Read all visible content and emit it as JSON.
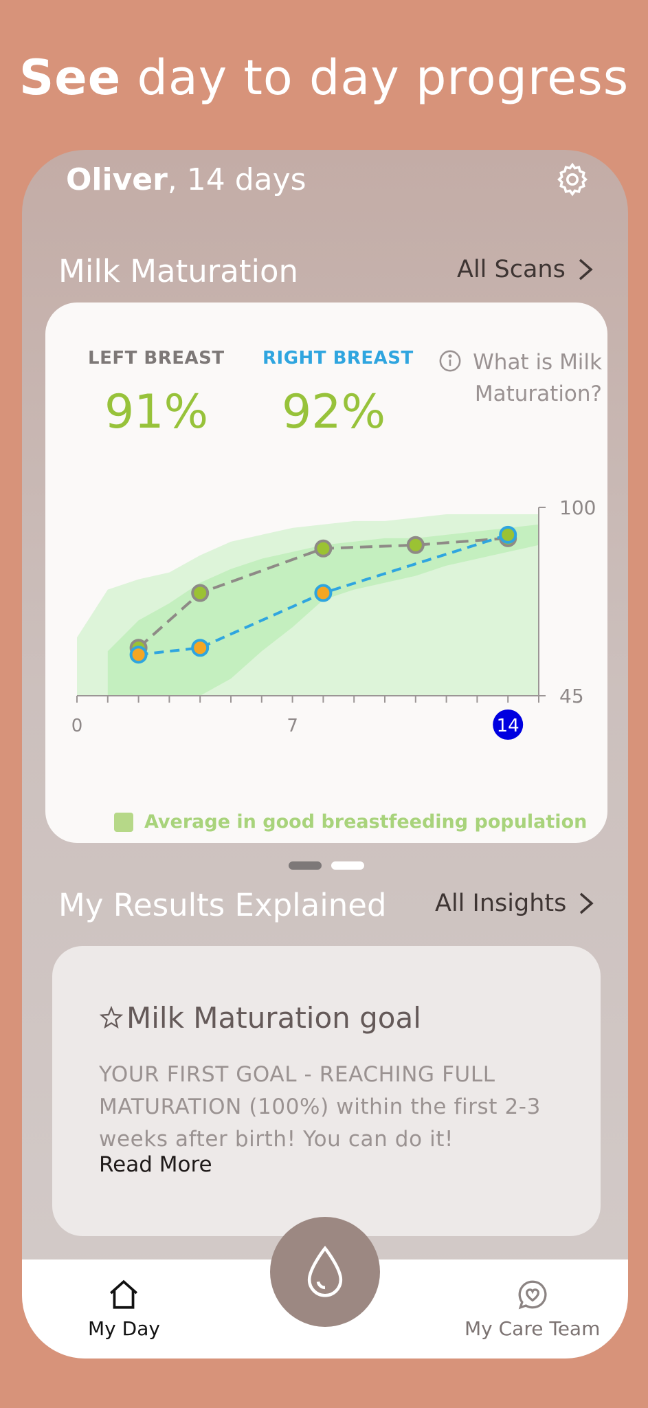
{
  "headline": {
    "bold": "See",
    "rest": " day to day progress"
  },
  "header": {
    "name": "Oliver",
    "age": ", 14 days",
    "settings_icon": "gear-icon"
  },
  "maturation": {
    "title": "Milk Maturation",
    "link": "All Scans",
    "left_label": "LEFT BREAST",
    "left_value": "91%",
    "right_label": "RIGHT BREAST",
    "right_value": "92%",
    "info_text": "What is Milk Maturation?",
    "legend": "Average in good breastfeeding population",
    "colors": {
      "left": "#8E8A86",
      "right": "#2FA5DF",
      "band": "#B9EDB4",
      "highlight": "#0000E0"
    }
  },
  "chart_data": {
    "type": "line",
    "x_ticks": [
      "0",
      "7",
      "14"
    ],
    "y_ticks": [
      "100",
      "45"
    ],
    "xlim": [
      0,
      15
    ],
    "ylim": [
      45,
      100
    ],
    "highlight_x": 14,
    "series": [
      {
        "x": [
          2,
          4,
          8,
          11,
          14
        ],
        "y": [
          59,
          75,
          88,
          89,
          91
        ]
      },
      {
        "x": [
          2,
          4,
          8,
          14
        ],
        "y": [
          57,
          59,
          75,
          92
        ]
      }
    ],
    "band_outer": {
      "x": [
        0,
        1,
        2,
        3,
        4,
        5,
        6,
        7,
        8,
        9,
        10,
        11,
        12,
        13,
        14,
        15
      ],
      "upper": [
        62,
        76,
        79,
        81,
        86,
        90,
        92,
        94,
        95,
        96,
        96,
        97,
        98,
        98,
        98,
        98
      ],
      "lower": [
        45,
        45,
        45,
        45,
        45,
        45,
        45,
        45,
        45,
        45,
        45,
        45,
        45,
        45,
        45,
        45
      ]
    },
    "band_inner": {
      "x": [
        1,
        2,
        3,
        4,
        5,
        6,
        7,
        8,
        9,
        10,
        11,
        12,
        13,
        14,
        15
      ],
      "upper": [
        58,
        67,
        72,
        78,
        82,
        85,
        87,
        89,
        90,
        91,
        91,
        92,
        93,
        94,
        95
      ],
      "lower": [
        45,
        45,
        45,
        45,
        50,
        58,
        65,
        73,
        76,
        78,
        80,
        83,
        85,
        87,
        89
      ]
    }
  },
  "insights": {
    "title": "My Results Explained",
    "link": "All Insights",
    "card_title": "Milk Maturation goal",
    "card_body": "YOUR FIRST GOAL - REACHING FULL MATURATION (100%) within the first 2-3 weeks after birth! You can do it!",
    "read_more": "Read More"
  },
  "nav": {
    "home": "My Day",
    "care": "My Care Team",
    "fab_icon": "drop-icon"
  },
  "pagination": {
    "active": 0,
    "count": 2
  }
}
